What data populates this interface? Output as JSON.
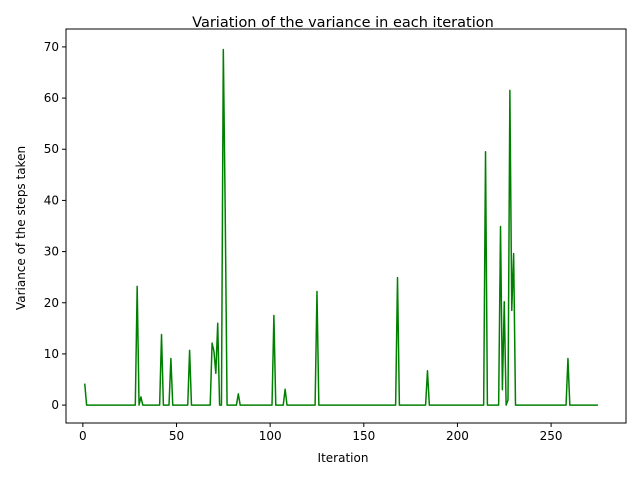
{
  "chart_data": {
    "type": "line",
    "title": "Variation of the variance in each iteration",
    "xlabel": "Iteration",
    "ylabel": "Variance of the steps taken",
    "xlim": [
      -9,
      290
    ],
    "ylim": [
      -3.5,
      73.5
    ],
    "xticks": [
      0,
      50,
      100,
      150,
      200,
      250
    ],
    "yticks": [
      0,
      10,
      20,
      30,
      40,
      50,
      60,
      70
    ],
    "grid": false,
    "legend": "none",
    "series": [
      {
        "color": "#008000",
        "x": [
          1,
          2,
          28,
          29,
          30,
          31,
          32,
          33,
          41,
          42,
          43,
          46,
          47,
          48,
          56,
          57,
          58,
          68,
          69,
          70,
          71,
          72,
          73,
          74,
          75,
          76,
          77,
          82,
          83,
          84,
          101,
          102,
          103,
          107,
          108,
          109,
          124,
          125,
          126,
          167,
          168,
          169,
          183,
          184,
          185,
          214,
          215,
          216,
          222,
          223,
          224,
          225,
          226,
          227,
          228,
          229,
          230,
          231,
          232,
          258,
          259,
          260,
          275
        ],
        "y": [
          4.2,
          0,
          0,
          23.2,
          0,
          1.6,
          0,
          0,
          0,
          13.8,
          0,
          0,
          9.1,
          0,
          0,
          10.7,
          0,
          0,
          12.1,
          10.5,
          6.2,
          16.0,
          0,
          0,
          69.5,
          38,
          0,
          0,
          2.2,
          0,
          0,
          17.5,
          0,
          0,
          3.1,
          0,
          0,
          22.2,
          0,
          0,
          24.9,
          0,
          0,
          6.7,
          0,
          0,
          49.5,
          0,
          0,
          34.9,
          3.0,
          20.2,
          0,
          1.0,
          61.5,
          18.5,
          29.6,
          0,
          0,
          0,
          9.1,
          0,
          0
        ]
      }
    ]
  }
}
